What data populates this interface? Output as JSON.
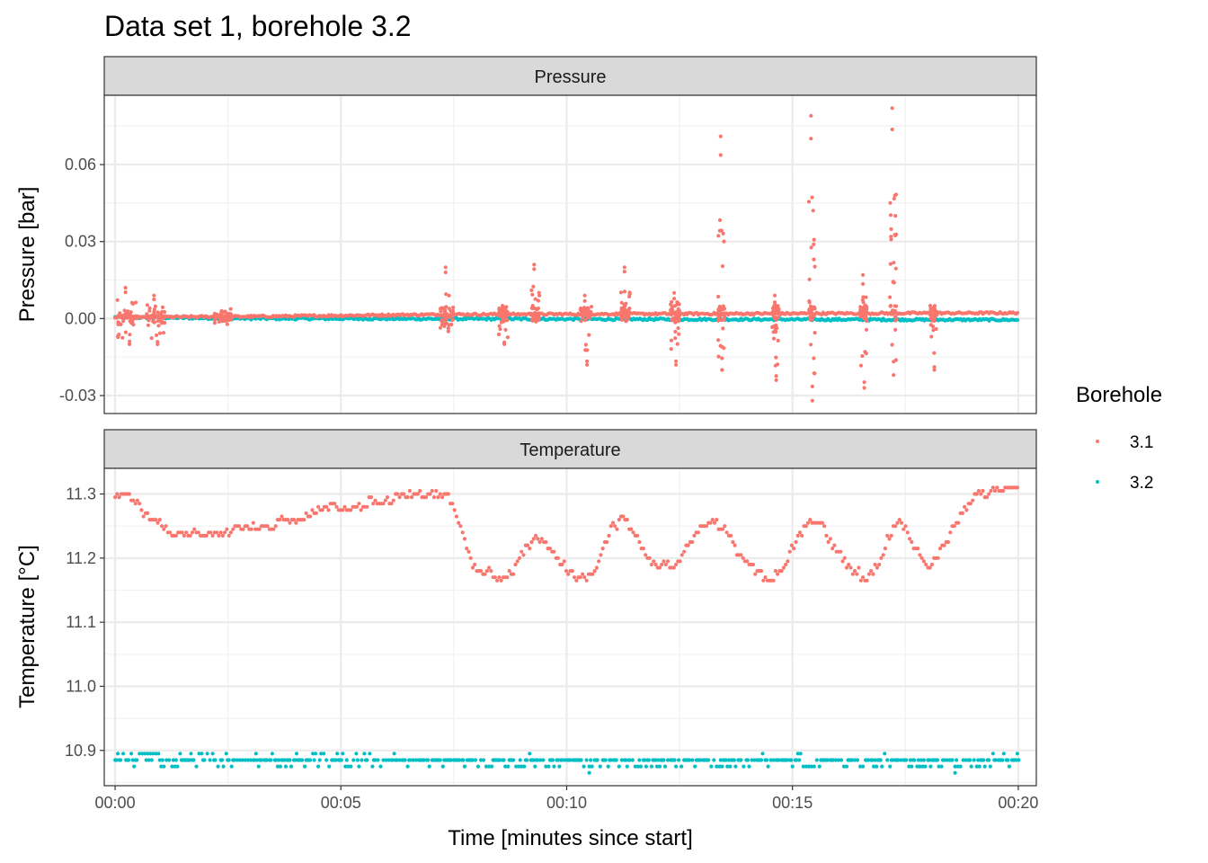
{
  "title": "Data set 1, borehole 3.2",
  "xlabel": "Time [minutes since start]",
  "x_ticks": [
    "00:00",
    "00:05",
    "00:10",
    "00:15",
    "00:20"
  ],
  "legend": {
    "title": "Borehole",
    "entries": [
      {
        "label": "3.1",
        "color": "#F8766D"
      },
      {
        "label": "3.2",
        "color": "#00BFC4"
      }
    ]
  },
  "chart_data": [
    {
      "type": "scatter",
      "panel": "Pressure",
      "ylabel": "Pressure [bar]",
      "xlim": [
        0,
        20
      ],
      "ylim": [
        -0.037,
        0.087
      ],
      "y_ticks": [
        "-0.03",
        "0.00",
        "0.03",
        "0.06"
      ],
      "y_tick_values": [
        -0.03,
        0.0,
        0.03,
        0.06
      ],
      "grid": true,
      "series": [
        {
          "name": "3.1",
          "color": "#F8766D",
          "baseline": [
            [
              0,
              0.0005
            ],
            [
              3,
              0.0008
            ],
            [
              7.3,
              0.0016
            ],
            [
              20,
              0.0022
            ]
          ],
          "bursts": [
            {
              "x": [
                0.05,
                0.5
              ],
              "ymin": -0.01,
              "ymax": 0.012
            },
            {
              "x": [
                0.7,
                1.1
              ],
              "ymin": -0.01,
              "ymax": 0.009
            },
            {
              "x": [
                2.2,
                2.6
              ],
              "ymin": -0.001,
              "ymax": 0.003
            },
            {
              "x": [
                7.2,
                7.5
              ],
              "ymin": -0.005,
              "ymax": 0.02
            },
            {
              "x": [
                8.5,
                8.7
              ],
              "ymin": -0.01,
              "ymax": 0.005
            },
            {
              "x": [
                9.2,
                9.4
              ],
              "ymin": -0.001,
              "ymax": 0.021
            },
            {
              "x": [
                10.3,
                10.55
              ],
              "ymin": -0.018,
              "ymax": 0.009
            },
            {
              "x": [
                11.2,
                11.4
              ],
              "ymin": -0.001,
              "ymax": 0.02
            },
            {
              "x": [
                12.3,
                12.5
              ],
              "ymin": -0.018,
              "ymax": 0.01
            },
            {
              "x": [
                13.35,
                13.5
              ],
              "ymin": -0.02,
              "ymax": 0.071
            },
            {
              "x": [
                14.55,
                14.7
              ],
              "ymin": -0.024,
              "ymax": 0.009
            },
            {
              "x": [
                15.35,
                15.5
              ],
              "ymin": -0.032,
              "ymax": 0.079
            },
            {
              "x": [
                16.5,
                16.65
              ],
              "ymin": -0.027,
              "ymax": 0.017
            },
            {
              "x": [
                17.15,
                17.3
              ],
              "ymin": -0.022,
              "ymax": 0.082
            },
            {
              "x": [
                18.05,
                18.2
              ],
              "ymin": -0.02,
              "ymax": 0.003
            }
          ]
        },
        {
          "name": "3.2",
          "color": "#00BFC4",
          "baseline": [
            [
              0,
              0.0005
            ],
            [
              3,
              0.0
            ],
            [
              20,
              -0.0005
            ]
          ],
          "spread": 0.0008
        }
      ]
    },
    {
      "type": "scatter",
      "panel": "Temperature",
      "ylabel": "Temperature [°C]",
      "xlim": [
        0,
        20
      ],
      "ylim": [
        10.845,
        11.34
      ],
      "y_ticks": [
        "10.9",
        "11.0",
        "11.1",
        "11.2",
        "11.3"
      ],
      "y_tick_values": [
        10.9,
        11.0,
        11.1,
        11.2,
        11.3
      ],
      "grid": true,
      "series": [
        {
          "name": "3.1",
          "color": "#F8766D",
          "path": [
            [
              0,
              11.295
            ],
            [
              0.2,
              11.305
            ],
            [
              0.5,
              11.285
            ],
            [
              0.8,
              11.26
            ],
            [
              1.0,
              11.255
            ],
            [
              1.2,
              11.24
            ],
            [
              1.5,
              11.235
            ],
            [
              2.0,
              11.235
            ],
            [
              2.2,
              11.24
            ],
            [
              2.6,
              11.245
            ],
            [
              3.3,
              11.245
            ],
            [
              3.6,
              11.255
            ],
            [
              4.2,
              11.265
            ],
            [
              4.5,
              11.275
            ],
            [
              5.2,
              11.275
            ],
            [
              5.6,
              11.285
            ],
            [
              6.2,
              11.295
            ],
            [
              7.0,
              11.295
            ],
            [
              7.4,
              11.295
            ],
            [
              7.6,
              11.26
            ],
            [
              7.8,
              11.21
            ],
            [
              8.0,
              11.18
            ],
            [
              8.3,
              11.18
            ],
            [
              8.5,
              11.165
            ],
            [
              8.8,
              11.18
            ],
            [
              9.0,
              11.21
            ],
            [
              9.2,
              11.225
            ],
            [
              9.5,
              11.23
            ],
            [
              9.8,
              11.2
            ],
            [
              10.0,
              11.18
            ],
            [
              10.3,
              11.17
            ],
            [
              10.6,
              11.18
            ],
            [
              10.8,
              11.22
            ],
            [
              11.0,
              11.25
            ],
            [
              11.3,
              11.26
            ],
            [
              11.6,
              11.23
            ],
            [
              11.9,
              11.19
            ],
            [
              12.2,
              11.185
            ],
            [
              12.4,
              11.19
            ],
            [
              12.8,
              11.235
            ],
            [
              13.2,
              11.26
            ],
            [
              13.5,
              11.25
            ],
            [
              13.8,
              11.21
            ],
            [
              14.2,
              11.18
            ],
            [
              14.5,
              11.17
            ],
            [
              14.8,
              11.185
            ],
            [
              15.1,
              11.235
            ],
            [
              15.4,
              11.26
            ],
            [
              15.6,
              11.26
            ],
            [
              15.9,
              11.22
            ],
            [
              16.3,
              11.185
            ],
            [
              16.6,
              11.17
            ],
            [
              16.9,
              11.19
            ],
            [
              17.2,
              11.245
            ],
            [
              17.4,
              11.26
            ],
            [
              17.7,
              11.22
            ],
            [
              18.0,
              11.19
            ],
            [
              18.2,
              11.2
            ],
            [
              18.6,
              11.255
            ],
            [
              19.0,
              11.295
            ],
            [
              19.4,
              11.305
            ],
            [
              20.0,
              11.315
            ]
          ]
        },
        {
          "name": "3.2",
          "color": "#00BFC4",
          "levels": [
            10.875,
            10.885,
            10.895
          ],
          "outliers": [
            [
              10.5,
              10.865
            ],
            [
              18.6,
              10.865
            ]
          ]
        }
      ]
    }
  ]
}
